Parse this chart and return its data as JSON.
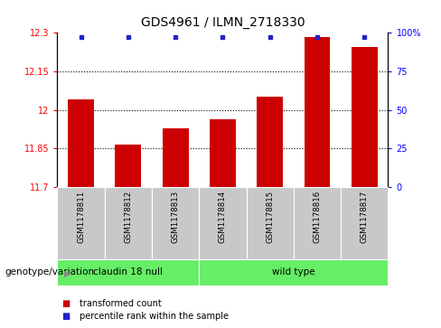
{
  "title": "GDS4961 / ILMN_2718330",
  "samples": [
    "GSM1178811",
    "GSM1178812",
    "GSM1178813",
    "GSM1178814",
    "GSM1178815",
    "GSM1178816",
    "GSM1178817"
  ],
  "transformed_count": [
    12.04,
    11.865,
    11.93,
    11.965,
    12.05,
    12.285,
    12.245
  ],
  "percentile_rank": [
    97,
    97,
    97,
    97,
    97,
    97,
    97
  ],
  "ylim": [
    11.7,
    12.3
  ],
  "yticks_left": [
    11.7,
    11.85,
    12.0,
    12.15,
    12.3
  ],
  "yticks_left_labels": [
    "11.7",
    "11.85",
    "12",
    "12.15",
    "12.3"
  ],
  "yticks_right": [
    0,
    25,
    50,
    75,
    100
  ],
  "yticks_right_labels": [
    "0",
    "25",
    "50",
    "75",
    "100%"
  ],
  "bar_color": "#cc0000",
  "dot_color": "#2222cc",
  "xlabel_bg_color": "#c8c8c8",
  "group_defs": [
    {
      "label": "claudin 18 null",
      "start": 0,
      "end": 3
    },
    {
      "label": "wild type",
      "start": 3,
      "end": 7
    }
  ],
  "group_color": "#66ee66",
  "genotype_label": "genotype/variation",
  "legend_tc": "transformed count",
  "legend_pr": "percentile rank within the sample",
  "bar_width": 0.55
}
